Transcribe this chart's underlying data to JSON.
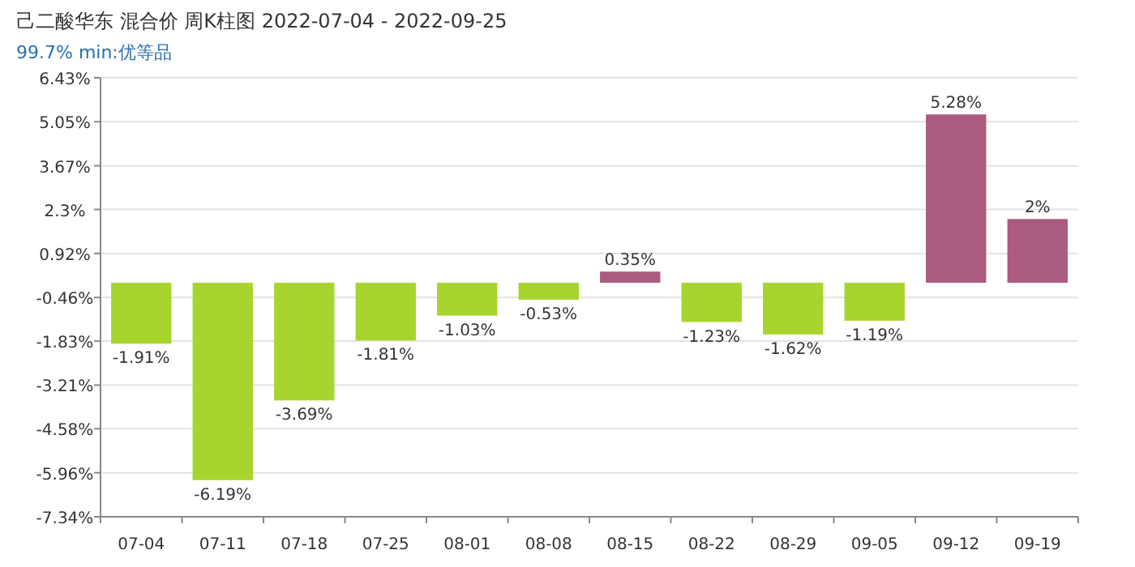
{
  "chart_data": {
    "type": "bar",
    "title": "己二酸华东 混合价 周K柱图 2022-07-04 - 2022-09-25",
    "subtitle": "99.7% min:优等品",
    "categories": [
      "07-04",
      "07-11",
      "07-18",
      "07-25",
      "08-01",
      "08-08",
      "08-15",
      "08-22",
      "08-29",
      "09-05",
      "09-12",
      "09-19"
    ],
    "values": [
      -1.91,
      -6.19,
      -3.69,
      -1.81,
      -1.03,
      -0.53,
      0.35,
      -1.23,
      -1.62,
      -1.19,
      5.28,
      2
    ],
    "colors": [
      "#a8d42e",
      "#a8d42e",
      "#a8d42e",
      "#a8d42e",
      "#a8d42e",
      "#a8d42e",
      "#ab5a80",
      "#a8d42e",
      "#a8d42e",
      "#a8d42e",
      "#ab5a80",
      "#ab5a80"
    ],
    "value_labels": [
      "-1.91%",
      "-6.19%",
      "-3.69%",
      "-1.81%",
      "-1.03%",
      "-0.53%",
      "0.35%",
      "-1.23%",
      "-1.62%",
      "-1.19%",
      "5.28%",
      "2%"
    ],
    "ylim": [
      -7.34,
      6.43
    ],
    "yticks": [
      {
        "value": 6.43,
        "label": "6.43%"
      },
      {
        "value": 5.05,
        "label": "5.05%"
      },
      {
        "value": 3.67,
        "label": "3.67%"
      },
      {
        "value": 2.3,
        "label": "2.3%"
      },
      {
        "value": 0.92,
        "label": "0.92%"
      },
      {
        "value": -0.46,
        "label": "-0.46%"
      },
      {
        "value": -1.83,
        "label": "-1.83%"
      },
      {
        "value": -3.21,
        "label": "-3.21%"
      },
      {
        "value": -4.58,
        "label": "-4.58%"
      },
      {
        "value": -5.96,
        "label": "-5.96%"
      },
      {
        "value": -7.34,
        "label": "-7.34%"
      }
    ],
    "grid": "y"
  }
}
